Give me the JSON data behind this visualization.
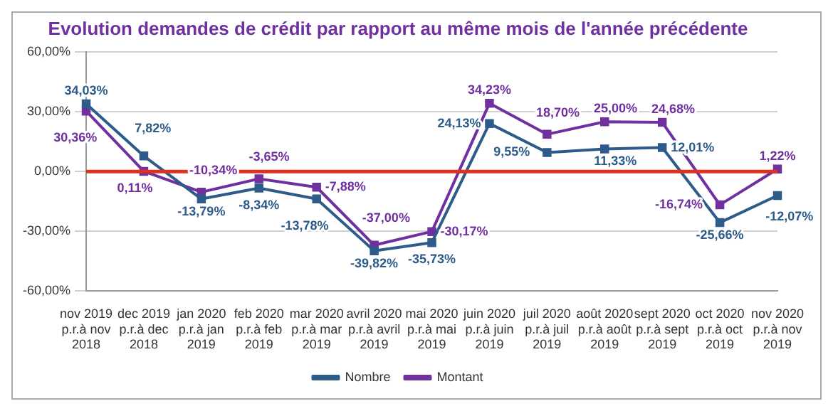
{
  "chart_data": {
    "type": "line",
    "title": "Evolution demandes de crédit par rapport au même mois de l'année précédente",
    "categories": [
      "nov 2019\np.r.à nov\n2018",
      "dec 2019\np.r.à dec\n2018",
      "jan 2020\np.r.à jan\n2019",
      "feb 2020\np.r.à feb\n2019",
      "mar 2020\np.r.à mar\n2019",
      "avril 2020\np.r.à avril\n2019",
      "mai 2020\np.r.à mai\n2019",
      "juin 2020\np.r.à juin\n2019",
      "juil 2020\np.r.à juil\n2019",
      "août 2020\np.r.à août\n2019",
      "sept 2020\np.r.à sept\n2019",
      "oct 2020\np.r.à oct\n2019",
      "nov 2020\np.r.à nov\n2019"
    ],
    "series": [
      {
        "name": "Nombre",
        "color": "#2e5c8a",
        "values": [
          34.03,
          7.82,
          -13.79,
          -8.34,
          -13.78,
          -39.82,
          -35.73,
          24.13,
          9.55,
          11.33,
          12.01,
          -25.66,
          -12.07
        ],
        "value_labels": [
          "34,03%",
          "7,82%",
          "-13,79%",
          "-8,34%",
          "-13,78%",
          "-39,82%",
          "-35,73%",
          "24,13%",
          "9,55%",
          "11,33%",
          "12,01%",
          "-25,66%",
          "-12,07%"
        ]
      },
      {
        "name": "Montant",
        "color": "#7030a0",
        "values": [
          30.36,
          0.11,
          -10.34,
          -3.65,
          -7.88,
          -37.0,
          -30.17,
          34.23,
          18.7,
          25.0,
          24.68,
          -16.74,
          1.22
        ],
        "value_labels": [
          "30,36%",
          "0,11%",
          "-10,34%",
          "-3,65%",
          "-7,88%",
          "-37,00%",
          "-30,17%",
          "34,23%",
          "18,70%",
          "25,00%",
          "24,68%",
          "-16,74%",
          "1,22%"
        ]
      }
    ],
    "ylim": [
      -60,
      60
    ],
    "yticks": [
      {
        "value": -60,
        "label": "-60,00%"
      },
      {
        "value": -30,
        "label": "-30,00%"
      },
      {
        "value": 0,
        "label": "0,00%"
      },
      {
        "value": 30,
        "label": "30,00%"
      },
      {
        "value": 60,
        "label": "60,00%"
      }
    ],
    "grid": "y",
    "legend": "bottom",
    "marker": "square",
    "line_style": "solid",
    "ref_lines": [
      {
        "axis": "y",
        "value": 0,
        "color": "#e0301e"
      }
    ]
  }
}
